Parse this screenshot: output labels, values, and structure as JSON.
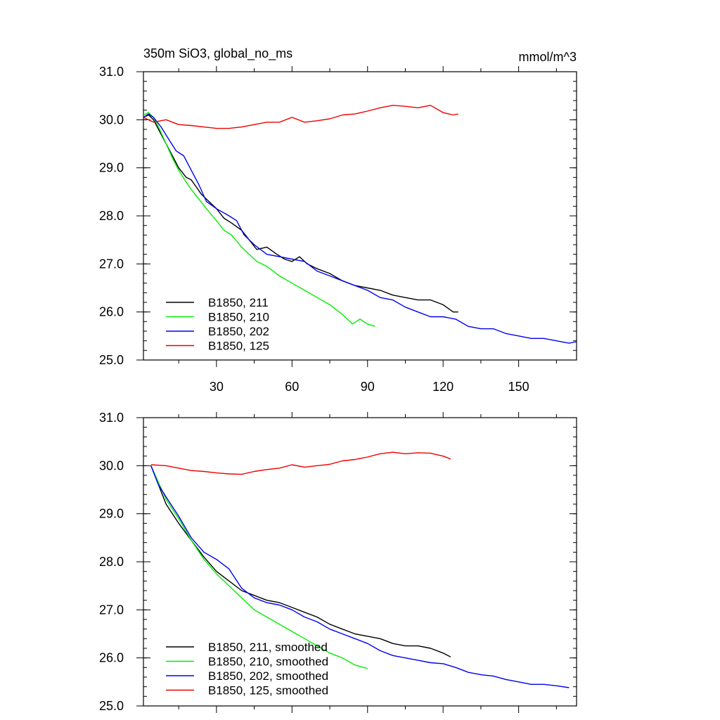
{
  "chart_data": [
    {
      "type": "line",
      "title": "350m SiO3, global_no_ms",
      "units": "mmol/m^3",
      "xlim": [
        1,
        173
      ],
      "ylim": [
        25.0,
        31.0
      ],
      "xticks": [
        30,
        60,
        90,
        120,
        150
      ],
      "xtick_labels": [
        "30",
        "60",
        "90",
        "120",
        "150"
      ],
      "yticks": [
        25.0,
        26.0,
        27.0,
        28.0,
        29.0,
        30.0,
        31.0
      ],
      "ytick_labels": [
        "25.0",
        "26.0",
        "27.0",
        "28.0",
        "29.0",
        "30.0",
        "31.0"
      ],
      "legend_position": "bottom-left",
      "series": [
        {
          "name": "B1850, 211",
          "color": "#000000",
          "x": [
            1,
            3,
            5,
            7,
            10,
            13,
            15,
            18,
            20,
            22,
            24,
            27,
            30,
            33,
            36,
            40,
            43,
            46,
            50,
            54,
            57,
            60,
            63,
            66,
            70,
            75,
            80,
            85,
            90,
            95,
            100,
            105,
            110,
            115,
            120,
            124,
            126
          ],
          "y": [
            30.05,
            30.1,
            30.0,
            29.8,
            29.5,
            29.2,
            29.0,
            28.8,
            28.75,
            28.6,
            28.45,
            28.3,
            28.15,
            27.95,
            27.85,
            27.7,
            27.5,
            27.3,
            27.35,
            27.2,
            27.1,
            27.05,
            27.15,
            27.0,
            26.9,
            26.8,
            26.65,
            26.55,
            26.5,
            26.45,
            26.35,
            26.3,
            26.25,
            26.25,
            26.15,
            26.0,
            26.0
          ]
        },
        {
          "name": "B1850, 210",
          "color": "#00ee00",
          "x": [
            1,
            3,
            5,
            7,
            10,
            13,
            15,
            18,
            20,
            23,
            26,
            30,
            33,
            36,
            40,
            43,
            46,
            50,
            55,
            60,
            65,
            70,
            75,
            80,
            84,
            87,
            90,
            93
          ],
          "y": [
            30.1,
            30.15,
            30.05,
            29.85,
            29.5,
            29.15,
            28.95,
            28.7,
            28.55,
            28.35,
            28.15,
            27.9,
            27.7,
            27.6,
            27.35,
            27.2,
            27.05,
            26.95,
            26.75,
            26.6,
            26.45,
            26.3,
            26.15,
            25.95,
            25.75,
            25.85,
            25.75,
            25.7
          ]
        },
        {
          "name": "B1850, 202",
          "color": "#0000ee",
          "x": [
            1,
            3,
            5,
            8,
            11,
            14,
            17,
            20,
            23,
            26,
            30,
            35,
            38,
            41,
            45,
            50,
            55,
            60,
            65,
            70,
            75,
            80,
            85,
            90,
            95,
            100,
            105,
            110,
            115,
            120,
            125,
            130,
            135,
            140,
            145,
            150,
            155,
            160,
            165,
            170,
            173
          ],
          "y": [
            30.05,
            30.12,
            30.05,
            29.85,
            29.6,
            29.35,
            29.25,
            28.95,
            28.65,
            28.3,
            28.15,
            28.0,
            27.9,
            27.6,
            27.4,
            27.2,
            27.15,
            27.1,
            27.05,
            26.85,
            26.75,
            26.65,
            26.55,
            26.45,
            26.3,
            26.25,
            26.1,
            26.0,
            25.9,
            25.9,
            25.85,
            25.7,
            25.65,
            25.65,
            25.55,
            25.5,
            25.45,
            25.45,
            25.4,
            25.35,
            25.38
          ]
        },
        {
          "name": "B1850, 125",
          "color": "#ee0000",
          "x": [
            1,
            5,
            10,
            15,
            20,
            25,
            30,
            35,
            40,
            45,
            50,
            55,
            60,
            65,
            70,
            75,
            80,
            85,
            90,
            95,
            100,
            105,
            110,
            115,
            120,
            124,
            126
          ],
          "y": [
            30.05,
            29.95,
            30.0,
            29.9,
            29.88,
            29.85,
            29.82,
            29.82,
            29.85,
            29.9,
            29.95,
            29.95,
            30.05,
            29.95,
            29.98,
            30.02,
            30.1,
            30.12,
            30.18,
            30.25,
            30.3,
            30.28,
            30.25,
            30.3,
            30.15,
            30.1,
            30.12
          ]
        }
      ]
    },
    {
      "type": "line",
      "xlim": [
        1,
        173
      ],
      "ylim": [
        25.0,
        31.0
      ],
      "yticks": [
        25.0,
        26.0,
        27.0,
        28.0,
        29.0,
        30.0,
        31.0
      ],
      "ytick_labels": [
        "25.0",
        "26.0",
        "27.0",
        "28.0",
        "29.0",
        "30.0",
        "31.0"
      ],
      "xticks": [
        30,
        60,
        90,
        120,
        150
      ],
      "legend_position": "bottom-left",
      "series": [
        {
          "name": "B1850, 211, smoothed",
          "color": "#000000",
          "x": [
            4,
            7,
            10,
            15,
            20,
            25,
            30,
            35,
            40,
            45,
            50,
            55,
            60,
            65,
            70,
            75,
            80,
            85,
            90,
            95,
            100,
            105,
            110,
            115,
            120,
            123
          ],
          "y": [
            30.0,
            29.6,
            29.2,
            28.8,
            28.45,
            28.1,
            27.8,
            27.6,
            27.4,
            27.3,
            27.2,
            27.15,
            27.05,
            26.95,
            26.85,
            26.7,
            26.6,
            26.5,
            26.45,
            26.4,
            26.3,
            26.25,
            26.25,
            26.2,
            26.1,
            26.02
          ]
        },
        {
          "name": "B1850, 210, smoothed",
          "color": "#00ee00",
          "x": [
            4,
            7,
            10,
            15,
            20,
            25,
            30,
            35,
            40,
            45,
            50,
            55,
            60,
            65,
            70,
            75,
            80,
            85,
            90
          ],
          "y": [
            30.0,
            29.65,
            29.3,
            28.9,
            28.45,
            28.05,
            27.75,
            27.5,
            27.25,
            27.0,
            26.85,
            26.7,
            26.55,
            26.4,
            26.25,
            26.1,
            26.0,
            25.85,
            25.78
          ]
        },
        {
          "name": "B1850, 202, smoothed",
          "color": "#0000ee",
          "x": [
            4,
            7,
            10,
            15,
            20,
            25,
            30,
            35,
            40,
            45,
            50,
            55,
            60,
            65,
            70,
            75,
            80,
            85,
            90,
            95,
            100,
            105,
            110,
            115,
            120,
            125,
            130,
            135,
            140,
            145,
            150,
            155,
            160,
            165,
            170
          ],
          "y": [
            30.0,
            29.6,
            29.35,
            28.95,
            28.5,
            28.2,
            28.05,
            27.85,
            27.45,
            27.25,
            27.15,
            27.1,
            27.0,
            26.85,
            26.75,
            26.6,
            26.5,
            26.4,
            26.3,
            26.15,
            26.05,
            26.0,
            25.95,
            25.9,
            25.88,
            25.8,
            25.7,
            25.65,
            25.62,
            25.55,
            25.5,
            25.45,
            25.45,
            25.42,
            25.38
          ]
        },
        {
          "name": "B1850, 125, smoothed",
          "color": "#ee0000",
          "x": [
            4,
            10,
            15,
            20,
            25,
            30,
            35,
            40,
            45,
            50,
            55,
            60,
            65,
            70,
            75,
            80,
            85,
            90,
            95,
            100,
            105,
            110,
            115,
            120,
            123
          ],
          "y": [
            30.02,
            30.0,
            29.95,
            29.9,
            29.88,
            29.85,
            29.83,
            29.82,
            29.88,
            29.92,
            29.95,
            30.02,
            29.97,
            30.0,
            30.03,
            30.1,
            30.13,
            30.18,
            30.25,
            30.28,
            30.25,
            30.27,
            30.26,
            30.2,
            30.14
          ]
        }
      ]
    }
  ]
}
